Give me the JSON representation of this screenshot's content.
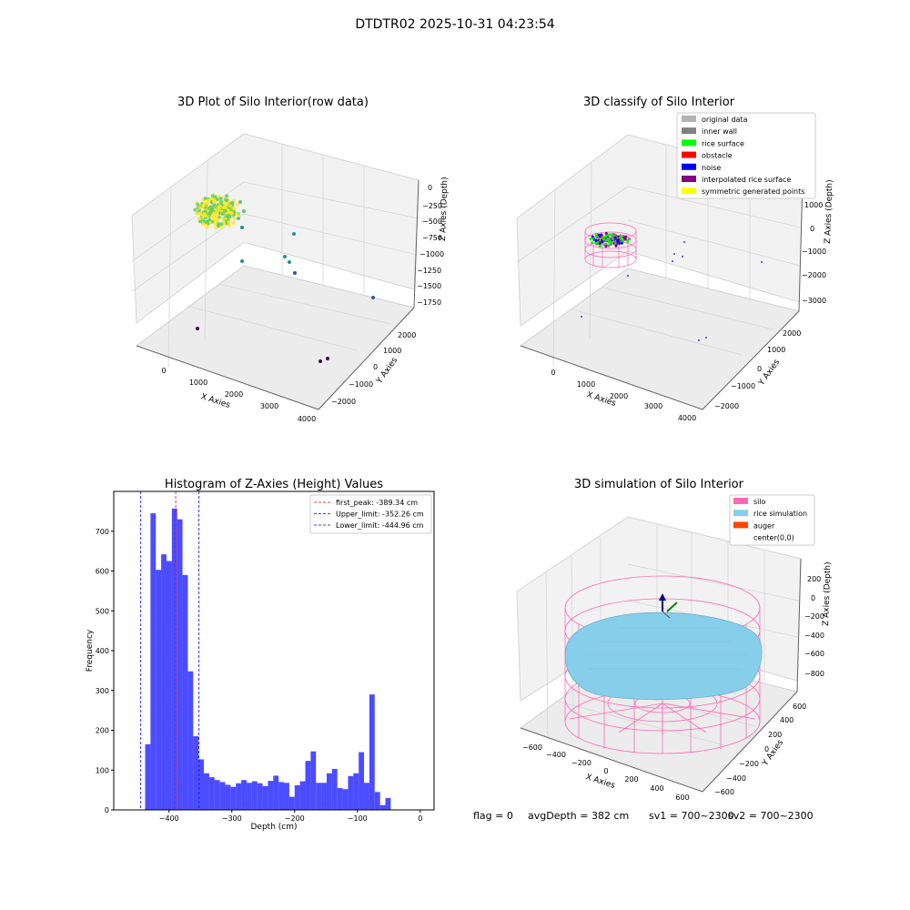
{
  "figure_title": "DTDTR02 2025-10-31 04:23:54",
  "footer": {
    "flag": "flag = 0",
    "avg_depth": "avgDepth = 382 cm",
    "sv1": "sv1 = 700~2300",
    "sv2": "sv2 = 700~2300"
  },
  "chart_data": [
    {
      "type": "scatter",
      "title": "3D Plot of Silo Interior(row data)",
      "xlabel": "X Axies",
      "ylabel": "Y Axies",
      "zlabel": "Z Axies (Depth)",
      "x_ticks": [
        "0",
        "1000",
        "2000",
        "3000",
        "4000"
      ],
      "y_ticks": [
        "−2000",
        "−1000",
        "0",
        "1000",
        "2000"
      ],
      "z_ticks": [
        "0",
        "−250",
        "−500",
        "−750",
        "−1000",
        "−1250",
        "−1500",
        "−1750"
      ],
      "colormap": [
        "#440154",
        "#3b528b",
        "#21918c",
        "#5ec962",
        "#fde725"
      ],
      "grid": true
    },
    {
      "type": "scatter",
      "title": "3D classify of Silo Interior",
      "xlabel": "X Axies",
      "ylabel": "Y Axies",
      "zlabel": "Z Axies (Depth)",
      "x_ticks": [
        "0",
        "1000",
        "2000",
        "3000",
        "4000"
      ],
      "y_ticks": [
        "−2000",
        "−1000",
        "0",
        "1000",
        "2000"
      ],
      "z_ticks": [
        "1000",
        "0",
        "−1000",
        "−2000",
        "−3000"
      ],
      "legend_position": "top-right",
      "legend": [
        {
          "label": "original data",
          "color": "#b3b3b3"
        },
        {
          "label": "inner wall",
          "color": "#808080"
        },
        {
          "label": "rice surface",
          "color": "#00ff00"
        },
        {
          "label": "obstacle",
          "color": "#ff0000"
        },
        {
          "label": "noise",
          "color": "#0000ff"
        },
        {
          "label": "interpolated rice surface",
          "color": "#800080"
        },
        {
          "label": "symmetric generated points",
          "color": "#ffff00"
        }
      ],
      "grid": true
    },
    {
      "type": "bar",
      "title": "Histogram of Z-Axies (Height) Values",
      "xlabel": "Depth (cm)",
      "ylabel": "Frequency",
      "xlim": [
        -488,
        22
      ],
      "ylim": [
        0,
        800
      ],
      "x_ticks": [
        -400,
        -300,
        -200,
        -100,
        0
      ],
      "y_ticks": [
        0,
        100,
        200,
        300,
        400,
        500,
        600,
        700
      ],
      "bin_start": -438,
      "bin_width": 8.5,
      "bar_color": "#0000ff",
      "values": [
        165,
        745,
        603,
        642,
        625,
        757,
        730,
        590,
        348,
        185,
        127,
        92,
        82,
        75,
        70,
        63,
        58,
        67,
        75,
        68,
        72,
        67,
        60,
        73,
        86,
        70,
        68,
        33,
        62,
        72,
        123,
        147,
        68,
        68,
        92,
        103,
        55,
        52,
        85,
        92,
        145,
        68,
        290,
        45,
        12,
        30
      ],
      "vlines": [
        {
          "label": "first_peak: -389.34 cm",
          "x": -389.34,
          "color": "#ff0000"
        },
        {
          "label": "Upper_limit: -352.26 cm",
          "x": -352.26,
          "color": "#0000ff"
        },
        {
          "label": "Lower_limit: -444.96 cm",
          "x": -444.96,
          "color": "#0000ff"
        }
      ],
      "legend_position": "top-right"
    },
    {
      "type": "scatter",
      "title": "3D simulation of Silo Interior",
      "xlabel": "X Axies",
      "ylabel": "Y Axies",
      "zlabel": "Z Axies (Depth)",
      "x_ticks": [
        "−600",
        "−400",
        "−200",
        "0",
        "200",
        "400",
        "600"
      ],
      "y_ticks": [
        "−600",
        "−400",
        "−200",
        "0",
        "200",
        "400",
        "600"
      ],
      "z_ticks": [
        "200",
        "0",
        "−200",
        "−400",
        "−600",
        "−800"
      ],
      "legend_position": "top-right",
      "legend": [
        {
          "label": "silo",
          "color": "#ff69b4"
        },
        {
          "label": "rice simulation",
          "color": "#87ceeb"
        },
        {
          "label": "auger",
          "color": "#ff4500"
        },
        {
          "label": "center(0,0)",
          "color": "#ffffff"
        }
      ],
      "grid": true
    }
  ]
}
